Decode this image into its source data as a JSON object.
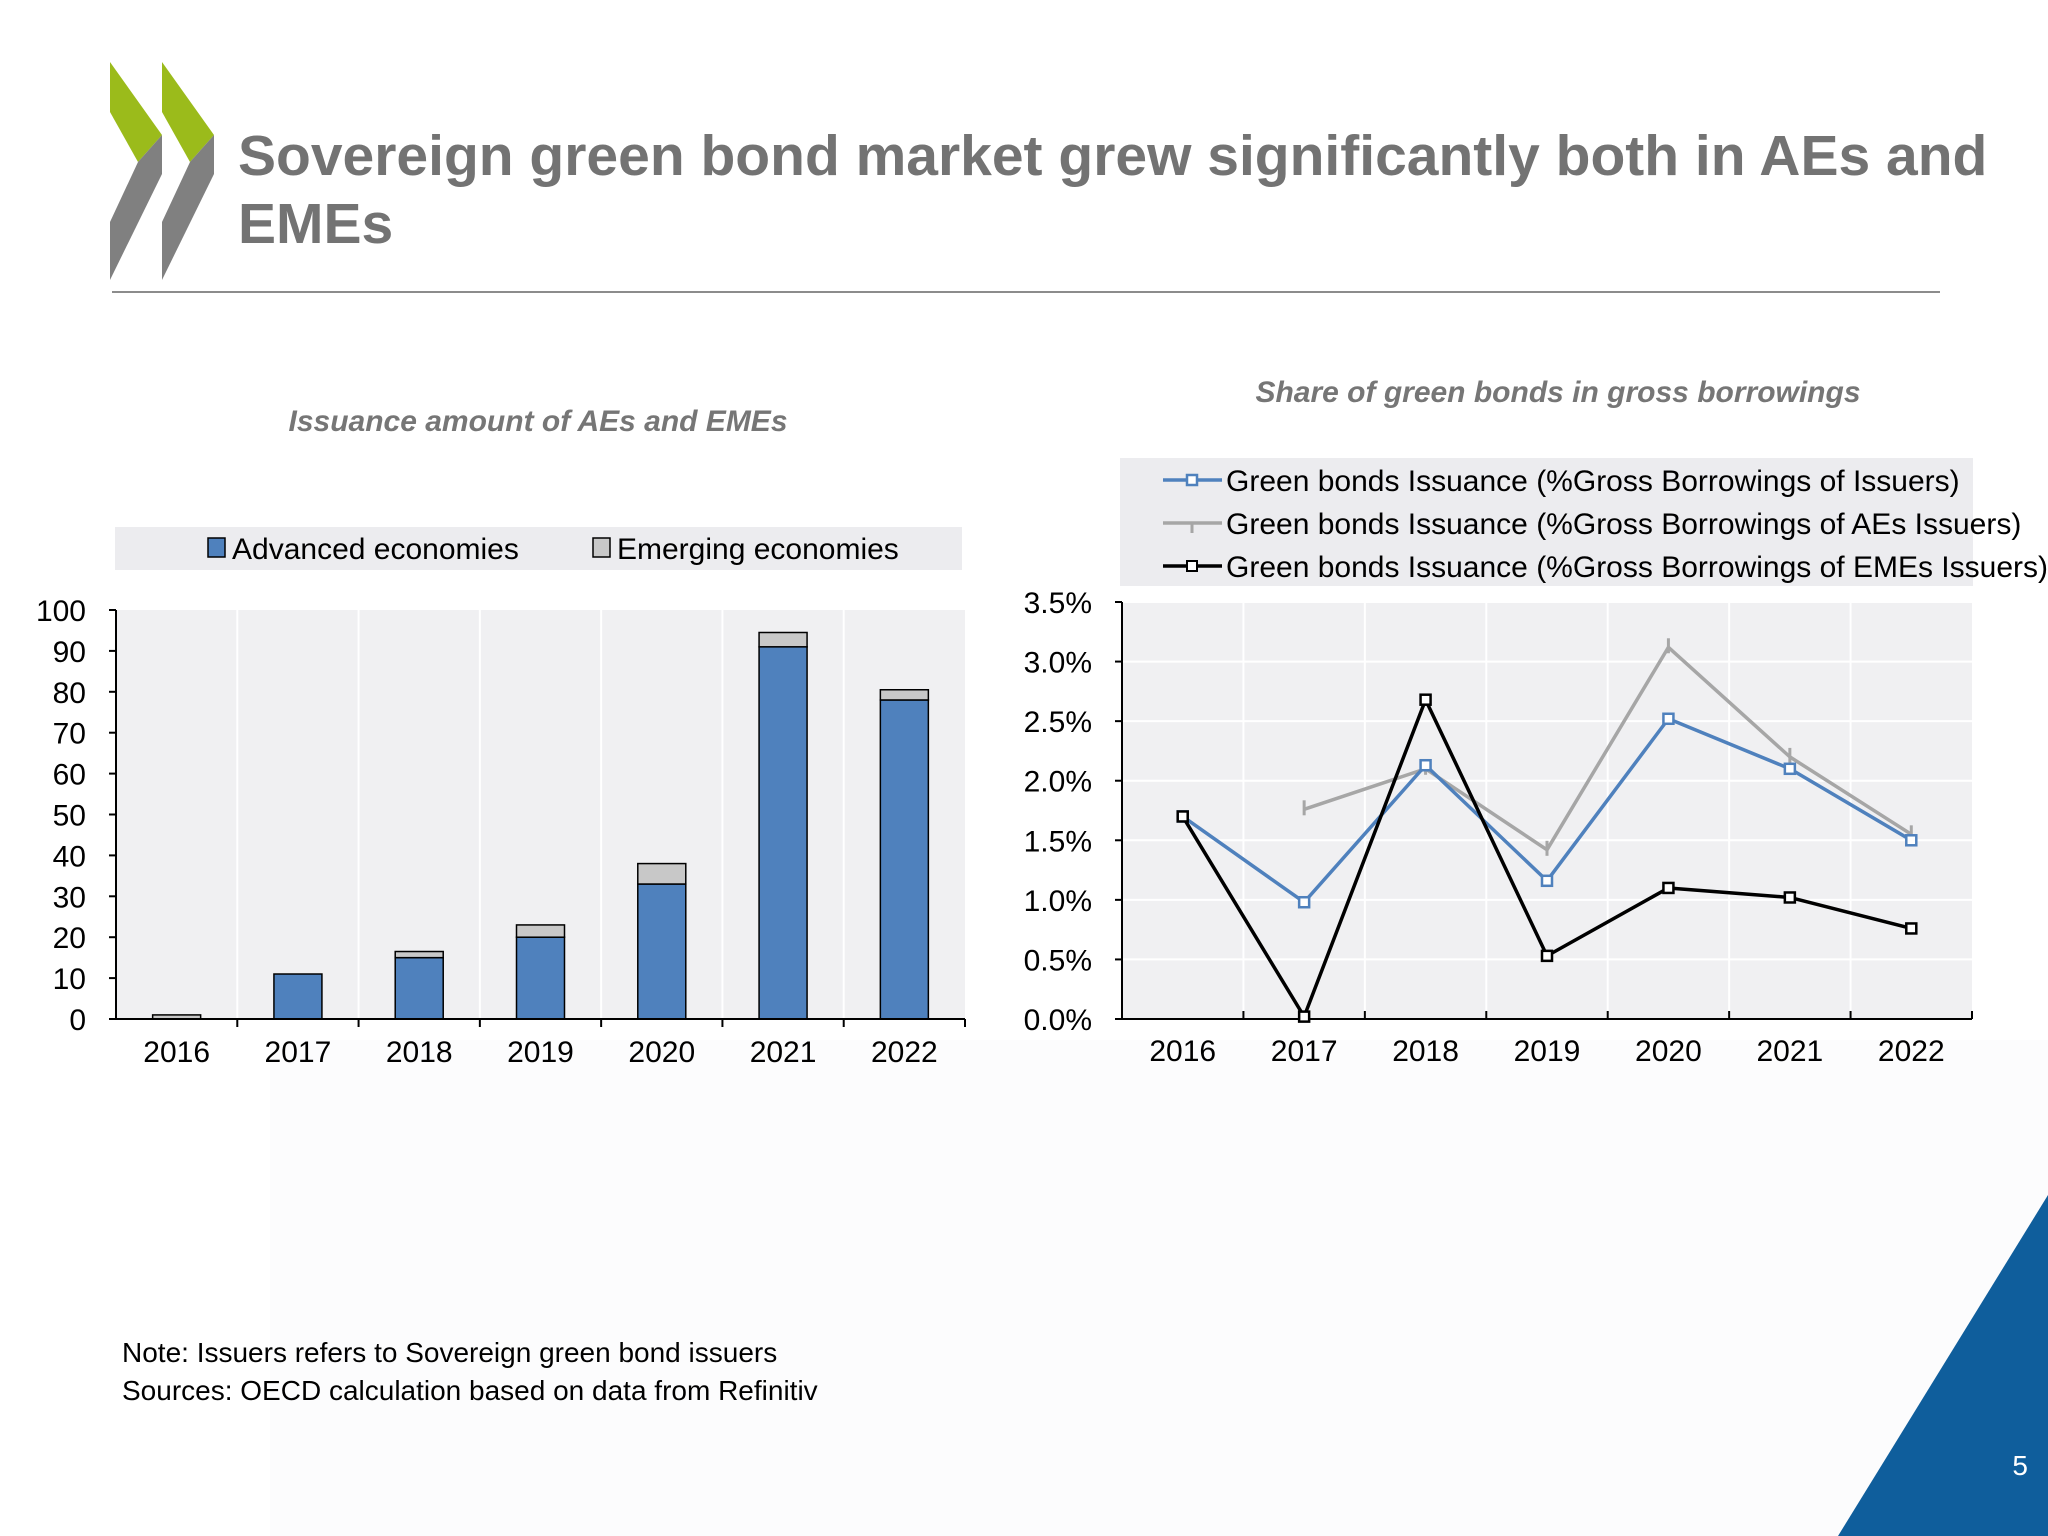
{
  "slide": {
    "title": "Sovereign green bond market grew significantly both in AEs and EMEs",
    "page_number": "5",
    "notes": [
      "Note: Issuers refers to Sovereign green bond issuers",
      "Sources: OECD calculation based on data from Refinitiv"
    ]
  },
  "colors": {
    "title": "#737373",
    "logo_green": "#9bbb1b",
    "logo_grey": "#808080",
    "corner_blue": "#0f5e9c",
    "advanced_bar": "#4f81bd",
    "emerging_bar": "#c8c8c8",
    "share_all": "#4f81bd",
    "share_aes": "#a6a6a6",
    "share_emes": "#000000",
    "plot_bg": "#f0f0f2"
  },
  "chart_data": [
    {
      "type": "bar",
      "stacked": true,
      "title": "Issuance amount of AEs and EMEs",
      "categories": [
        "2016",
        "2017",
        "2018",
        "2019",
        "2020",
        "2021",
        "2022"
      ],
      "series": [
        {
          "name": "Advanced economies",
          "values": [
            0,
            11,
            15,
            20,
            33,
            91,
            78
          ]
        },
        {
          "name": "Emerging economies",
          "values": [
            1,
            0,
            1.5,
            3,
            5,
            3.5,
            2.5
          ]
        }
      ],
      "ylim": [
        0,
        100
      ],
      "yticks": [
        "0",
        "10",
        "20",
        "30",
        "40",
        "50",
        "60",
        "70",
        "80",
        "90",
        "100"
      ],
      "legend": "top",
      "grid": "vertical"
    },
    {
      "type": "line",
      "title": "Share of green bonds in gross borrowings",
      "categories": [
        "2016",
        "2017",
        "2018",
        "2019",
        "2020",
        "2021",
        "2022"
      ],
      "series": [
        {
          "name": "Green bonds Issuance (%Gross Borrowings of Issuers)",
          "values": [
            1.7,
            0.98,
            2.13,
            1.16,
            2.52,
            2.1,
            1.5
          ]
        },
        {
          "name": "Green bonds Issuance (%Gross Borrowings of AEs Issuers)",
          "values": [
            null,
            1.76,
            2.1,
            1.42,
            3.12,
            2.2,
            1.55
          ]
        },
        {
          "name": "Green bonds Issuance (%Gross Borrowings of EMEs Issuers)",
          "values": [
            1.7,
            0.02,
            2.68,
            0.53,
            1.1,
            1.02,
            0.76
          ]
        }
      ],
      "ylim": [
        0,
        3.5
      ],
      "yticks": [
        "0.0%",
        "0.5%",
        "1.0%",
        "1.5%",
        "2.0%",
        "2.5%",
        "3.0%",
        "3.5%"
      ],
      "legend": "top",
      "grid": "both"
    }
  ]
}
